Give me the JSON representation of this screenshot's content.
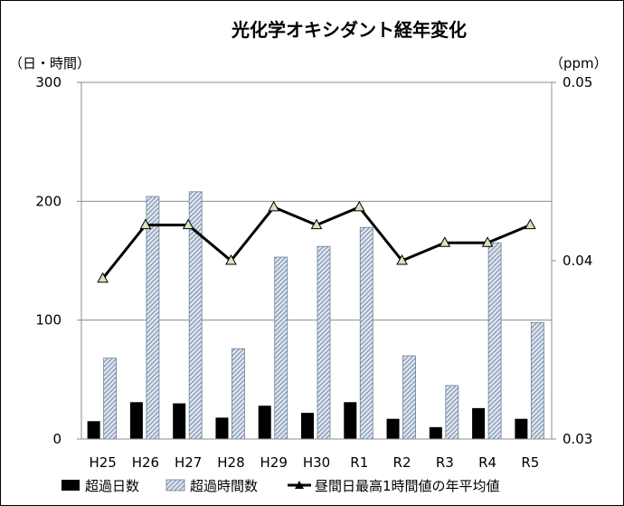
{
  "chart_data": {
    "type": "bar",
    "title": "光化学オキシダント経年変化",
    "y_left_unit": "（日・時間）",
    "y_right_unit": "（ppm）",
    "categories": [
      "H25",
      "H26",
      "H27",
      "H28",
      "H29",
      "H30",
      "R1",
      "R2",
      "R3",
      "R4",
      "R5"
    ],
    "ylim_left": [
      0,
      300
    ],
    "yticks_left": [
      "0",
      "100",
      "200",
      "300"
    ],
    "ylim_right": [
      0.03,
      0.05
    ],
    "yticks_right": [
      "0.03",
      "0.04",
      "0.05"
    ],
    "grid": true,
    "legend_position": "bottom",
    "series": [
      {
        "name": "超過日数",
        "kind": "bar",
        "axis": "left",
        "color": "#000000",
        "values": [
          15,
          31,
          30,
          18,
          28,
          22,
          31,
          17,
          10,
          26,
          17
        ]
      },
      {
        "name": "超過時間数",
        "kind": "bar",
        "axis": "left",
        "pattern": "hatch",
        "color": "#dbe5f1",
        "values": [
          68,
          204,
          208,
          76,
          153,
          162,
          178,
          70,
          45,
          165,
          98
        ]
      },
      {
        "name": "昼間日最高1時間値の年平均値",
        "kind": "line",
        "axis": "right",
        "color": "#000000",
        "marker_color": "#d7e4bd",
        "values": [
          0.039,
          0.042,
          0.042,
          0.04,
          0.043,
          0.042,
          0.043,
          0.04,
          0.041,
          0.041,
          0.042
        ]
      }
    ]
  }
}
